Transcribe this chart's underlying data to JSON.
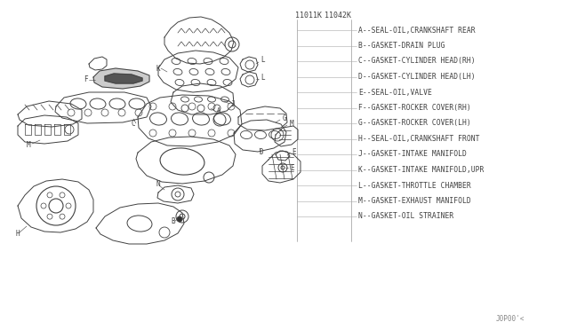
{
  "bg_color": "#ffffff",
  "line_color": "#404040",
  "part_number_left": "11011K",
  "part_number_right": "11042K",
  "legend_items": [
    "A--SEAL-OIL,CRANKSHAFT REAR",
    "B--GASKET-DRAIN PLUG",
    "C--GASKET-CYLINDER HEAD(RH)",
    "D--GASKET-CYLINDER HEAD(LH)",
    "E--SEAL-OIL,VALVE",
    "F--GASKET-ROCKER COVER(RH)",
    "G--GASKET-ROCKER COVER(LH)",
    "H--SEAL-OIL,CRANKSHAFT FRONT",
    "J--GASKET-INTAKE MANIFOLD",
    "K--GASKET-INTAKE MANIFOLD,UPR",
    "L--GASKET-THROTTLE CHAMBER",
    "M--GASKET-EXHAUST MANIFOLD",
    "N--GASKET-OIL STRAINER"
  ],
  "footer_text": "J0P00'<",
  "legend_font_size": 5.8,
  "label_font_size": 5.5,
  "partnum_font_size": 6.0
}
